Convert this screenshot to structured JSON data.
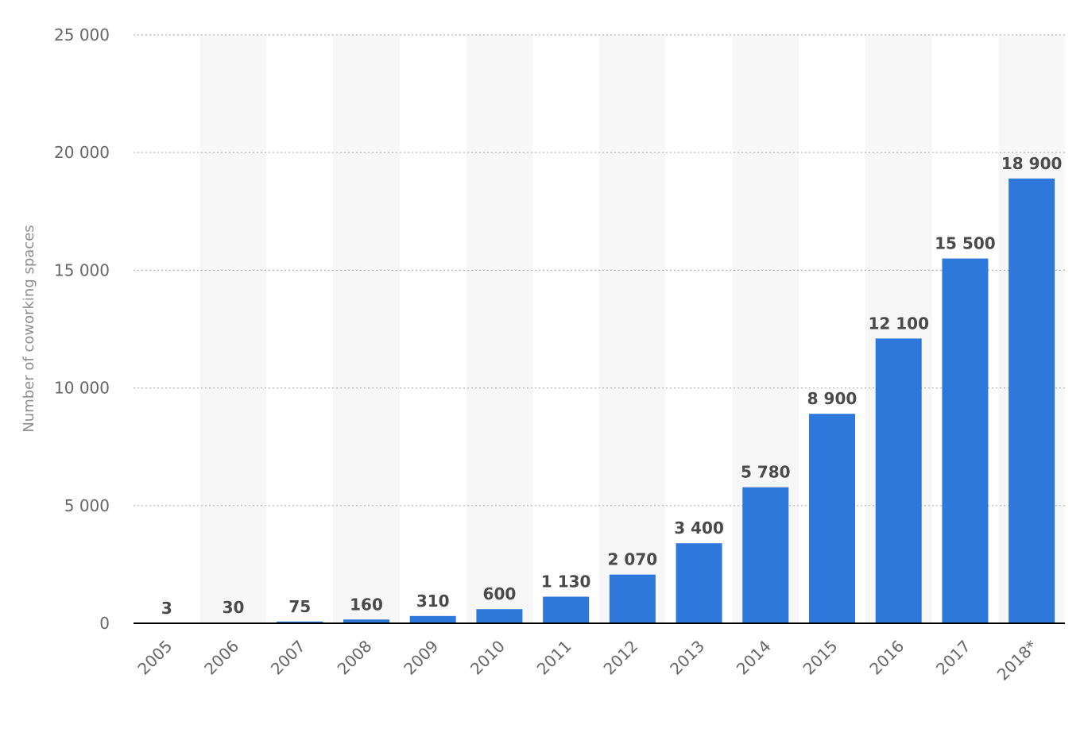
{
  "chart_data": {
    "type": "bar",
    "title": "",
    "xlabel": "",
    "ylabel": "Number of coworking spaces",
    "categories": [
      "2005",
      "2006",
      "2007",
      "2008",
      "2009",
      "2010",
      "2011",
      "2012",
      "2013",
      "2014",
      "2015",
      "2016",
      "2017",
      "2018*"
    ],
    "values": [
      3,
      30,
      75,
      160,
      310,
      600,
      1130,
      2070,
      3400,
      5780,
      8900,
      12100,
      15500,
      18900
    ],
    "value_labels": [
      "3",
      "30",
      "75",
      "160",
      "310",
      "600",
      "1 130",
      "2 070",
      "3 400",
      "5 780",
      "8 900",
      "12 100",
      "15 500",
      "18 900"
    ],
    "ylim": [
      0,
      25000
    ],
    "yticks": [
      0,
      5000,
      10000,
      15000,
      20000,
      25000
    ],
    "ytick_labels": [
      "0",
      "5 000",
      "10 000",
      "15 000",
      "20 000",
      "25 000"
    ],
    "grid": true,
    "legend": "none",
    "colors": {
      "bar": "#2e78db",
      "band": "#f7f7f7",
      "grid": "#b5b5b5",
      "axis": "#000000"
    }
  }
}
